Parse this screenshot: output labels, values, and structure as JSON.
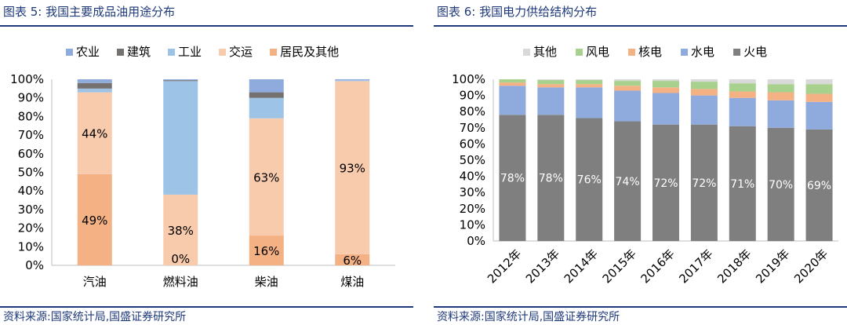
{
  "left": {
    "title": "图表 5:  我国主要成品油用途分布",
    "source": "资料来源:国家统计局,国盛证券研究所",
    "chart_data": {
      "type": "bar",
      "stacked": true,
      "categories": [
        "汽油",
        "燃料油",
        "柴油",
        "煤油"
      ],
      "ylim": [
        0,
        100
      ],
      "yticks": [
        "0%",
        "10%",
        "20%",
        "30%",
        "40%",
        "50%",
        "60%",
        "70%",
        "80%",
        "90%",
        "100%"
      ],
      "legend": [
        "农业",
        "建筑",
        "工业",
        "交运",
        "居民及其他"
      ],
      "series": [
        {
          "name": "居民及其他",
          "color": "#f4b183",
          "values": [
            49,
            0,
            16,
            6
          ]
        },
        {
          "name": "交运",
          "color": "#f8cbad",
          "values": [
            44,
            38,
            63,
            93
          ]
        },
        {
          "name": "工业",
          "color": "#9dc3e6",
          "values": [
            2,
            61,
            11,
            0.5
          ]
        },
        {
          "name": "建筑",
          "color": "#767171",
          "values": [
            3,
            0.5,
            3,
            0
          ]
        },
        {
          "name": "农业",
          "color": "#8faadc",
          "values": [
            2,
            0.5,
            7,
            0.5
          ]
        }
      ],
      "data_labels": [
        {
          "category": 0,
          "series": "居民及其他",
          "text": "49%"
        },
        {
          "category": 0,
          "series": "交运",
          "text": "44%"
        },
        {
          "category": 1,
          "series": "居民及其他",
          "text": "0%"
        },
        {
          "category": 1,
          "series": "交运",
          "text": "38%"
        },
        {
          "category": 2,
          "series": "居民及其他",
          "text": "16%"
        },
        {
          "category": 2,
          "series": "交运",
          "text": "63%"
        },
        {
          "category": 3,
          "series": "居民及其他",
          "text": "6%"
        },
        {
          "category": 3,
          "series": "交运",
          "text": "93%"
        }
      ]
    }
  },
  "right": {
    "title": "图表 6:  我国电力供给结构分布",
    "source": "资料来源:国家统计局,国盛证券研究所",
    "chart_data": {
      "type": "bar",
      "stacked": true,
      "categories": [
        "2012年",
        "2013年",
        "2014年",
        "2015年",
        "2016年",
        "2017年",
        "2018年",
        "2019年",
        "2020年"
      ],
      "ylim": [
        0,
        100
      ],
      "yticks": [
        "0%",
        "10%",
        "20%",
        "30%",
        "40%",
        "50%",
        "60%",
        "70%",
        "80%",
        "90%",
        "100%"
      ],
      "legend": [
        "其他",
        "风电",
        "核电",
        "水电",
        "火电"
      ],
      "series": [
        {
          "name": "火电",
          "color": "#7f7f7f",
          "values": [
            78,
            78,
            76,
            74,
            72,
            72,
            71,
            70,
            69
          ]
        },
        {
          "name": "水电",
          "color": "#8faadc",
          "values": [
            18,
            17,
            19,
            19,
            19.5,
            18,
            17.5,
            17,
            17
          ]
        },
        {
          "name": "核电",
          "color": "#f4b183",
          "values": [
            2,
            2,
            2,
            3,
            3.5,
            4,
            4,
            5,
            5
          ]
        },
        {
          "name": "风电",
          "color": "#a9d18e",
          "values": [
            2,
            2.5,
            2.5,
            3,
            4,
            4.5,
            5,
            5,
            6
          ]
        },
        {
          "name": "其他",
          "color": "#d9d9d9",
          "values": [
            0,
            0.5,
            0.5,
            1,
            1,
            1.5,
            2.5,
            3,
            3
          ]
        }
      ],
      "data_labels": [
        "78%",
        "78%",
        "76%",
        "74%",
        "72%",
        "72%",
        "71%",
        "70%",
        "69%"
      ]
    }
  }
}
